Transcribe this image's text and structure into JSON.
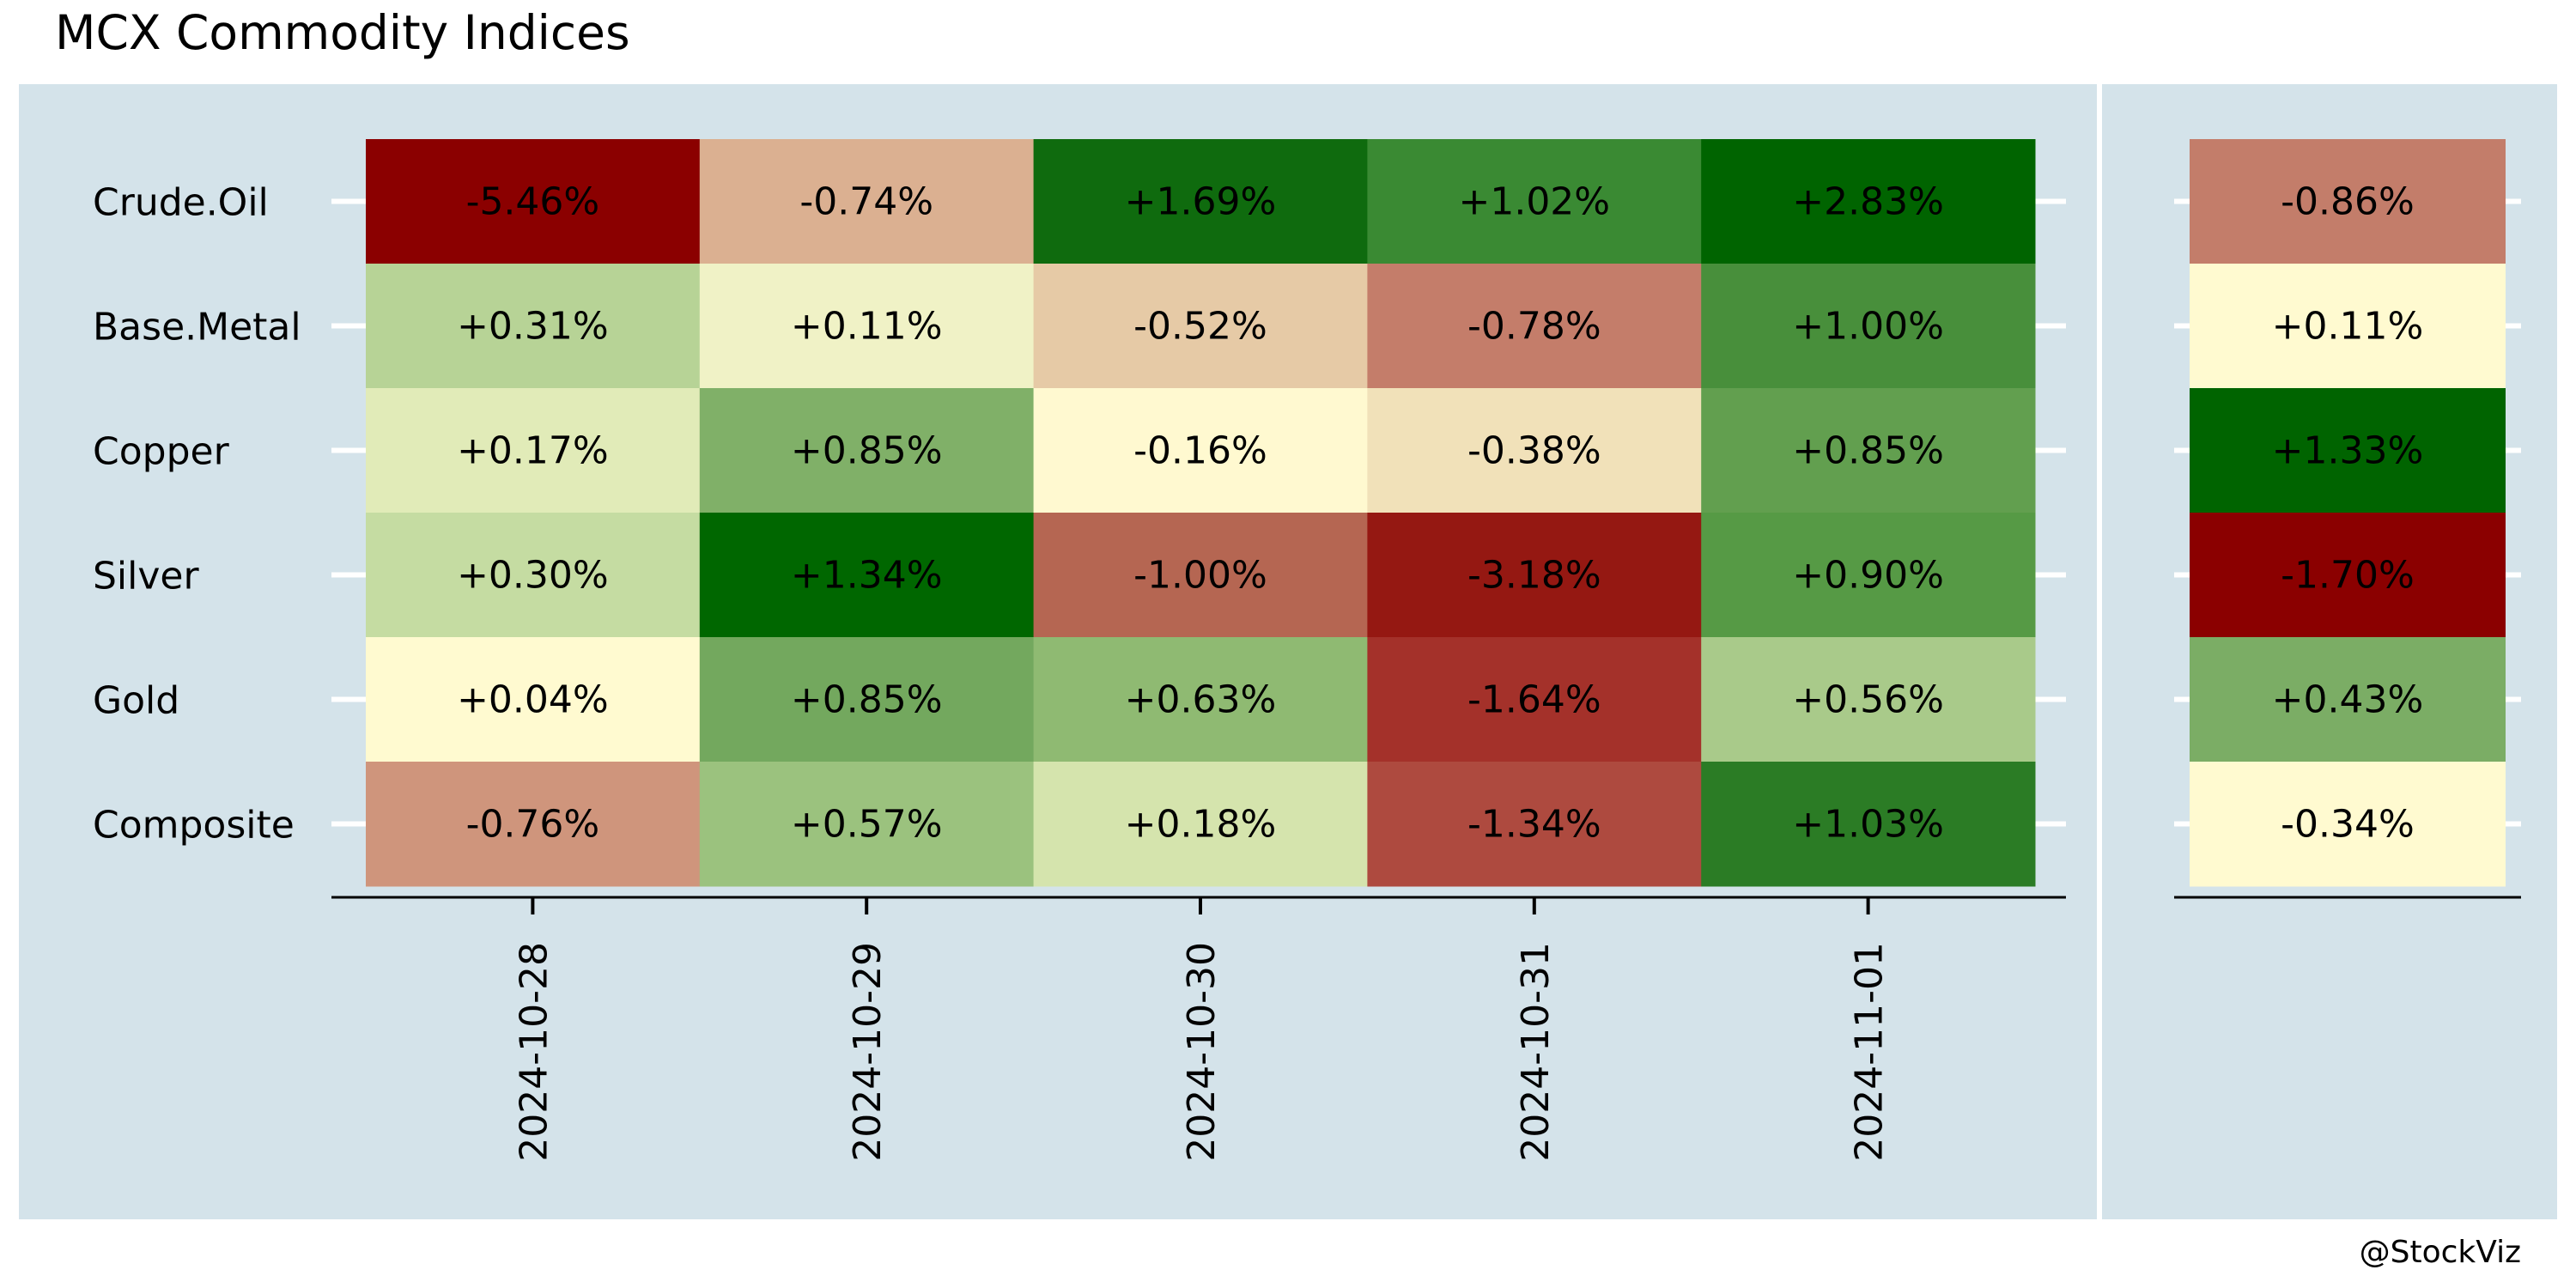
{
  "title": "MCX Commodity Indices",
  "credit": "@StockViz",
  "colors": {
    "background": "#ffffff",
    "panel": "#d4e3ea",
    "negative_extreme": "#8b0000",
    "neutral": "#fffad0",
    "positive_extreme": "#006400",
    "tick": "#ffffff",
    "axis": "#000000"
  },
  "chart_data": [
    {
      "type": "heatmap",
      "title": "MCX Commodity Indices",
      "rows": [
        "Crude.Oil",
        "Base.Metal",
        "Copper",
        "Silver",
        "Gold",
        "Composite"
      ],
      "columns": [
        "2024-10-28",
        "2024-10-29",
        "2024-10-30",
        "2024-10-31",
        "2024-11-01"
      ],
      "values": [
        [
          -5.46,
          -0.74,
          1.69,
          1.02,
          2.83
        ],
        [
          0.31,
          0.11,
          -0.52,
          -0.78,
          1.0
        ],
        [
          0.17,
          0.85,
          -0.16,
          -0.38,
          0.85
        ],
        [
          0.3,
          1.34,
          -1.0,
          -3.18,
          0.9
        ],
        [
          0.04,
          0.85,
          0.63,
          -1.64,
          0.56
        ],
        [
          -0.76,
          0.57,
          0.18,
          -1.34,
          1.03
        ]
      ],
      "labels": [
        [
          "-5.46%",
          "-0.74%",
          "+1.69%",
          "+1.02%",
          "+2.83%"
        ],
        [
          "+0.31%",
          "+0.11%",
          "-0.52%",
          "-0.78%",
          "+1.00%"
        ],
        [
          "+0.17%",
          "+0.85%",
          "-0.16%",
          "-0.38%",
          "+0.85%"
        ],
        [
          "+0.30%",
          "+1.34%",
          "-1.00%",
          "-3.18%",
          "+0.90%"
        ],
        [
          "+0.04%",
          "+0.85%",
          "+0.63%",
          "-1.64%",
          "+0.56%"
        ],
        [
          "-0.76%",
          "+0.57%",
          "+0.18%",
          "-1.34%",
          "+1.03%"
        ]
      ],
      "cell_colors": [
        [
          "#8b0000",
          "#dbb091",
          "#0f6b0e",
          "#3a8a33",
          "#006400"
        ],
        [
          "#b7d396",
          "#f0f2c6",
          "#e6caa6",
          "#c47d6a",
          "#488f3b"
        ],
        [
          "#e1ebb8",
          "#80b068",
          "#fff9d0",
          "#f1e1b9",
          "#629f4f"
        ],
        [
          "#c5dca2",
          "#006700",
          "#b56652",
          "#951812",
          "#569a45"
        ],
        [
          "#fffad0",
          "#73a85e",
          "#8fba72",
          "#a4312a",
          "#a9ca8a"
        ],
        [
          "#cf957c",
          "#9bc27e",
          "#d5e4ad",
          "#ae4a3f",
          "#2b7c25"
        ]
      ]
    },
    {
      "type": "heatmap",
      "rows": [
        "Crude.Oil",
        "Base.Metal",
        "Copper",
        "Silver",
        "Gold",
        "Composite"
      ],
      "columns": [
        ""
      ],
      "values": [
        [
          -0.86
        ],
        [
          0.11
        ],
        [
          1.33
        ],
        [
          -1.7
        ],
        [
          0.43
        ],
        [
          -0.34
        ]
      ],
      "labels": [
        [
          "-0.86%"
        ],
        [
          "+0.11%"
        ],
        [
          "+1.33%"
        ],
        [
          "-1.70%"
        ],
        [
          "+0.43%"
        ],
        [
          "-0.34%"
        ]
      ],
      "cell_colors": [
        [
          "#c37d6a"
        ],
        [
          "#fffad0"
        ],
        [
          "#006400"
        ],
        [
          "#8b0000"
        ],
        [
          "#7bad65"
        ],
        [
          "#fffad0"
        ]
      ]
    }
  ]
}
